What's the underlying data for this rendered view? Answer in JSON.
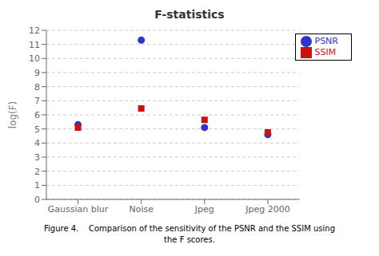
{
  "chart_data": {
    "type": "scatter",
    "title": "F-statistics",
    "y_label": "log(F)",
    "categories": [
      "Gaussian blur",
      "Noise",
      "Jpeg",
      "Jpeg 2000"
    ],
    "series": [
      {
        "name": "PSNR",
        "color": "#3333cc",
        "marker": "circle",
        "values": [
          5.3,
          11.3,
          5.1,
          4.6
        ]
      },
      {
        "name": "SSIM",
        "color": "#cc1111",
        "marker": "square",
        "values": [
          5.1,
          6.45,
          5.65,
          4.75
        ]
      }
    ],
    "ylim": [
      0,
      12
    ],
    "yticks": [
      0,
      1,
      2,
      3,
      4,
      5,
      6,
      7,
      8,
      9,
      10,
      11,
      12
    ],
    "grid": true,
    "legend": "upper right",
    "annotations": [
      "Figure 4.    Comparison of the sensitivity of the PSNR and the SSIM using",
      "the F scores."
    ]
  }
}
